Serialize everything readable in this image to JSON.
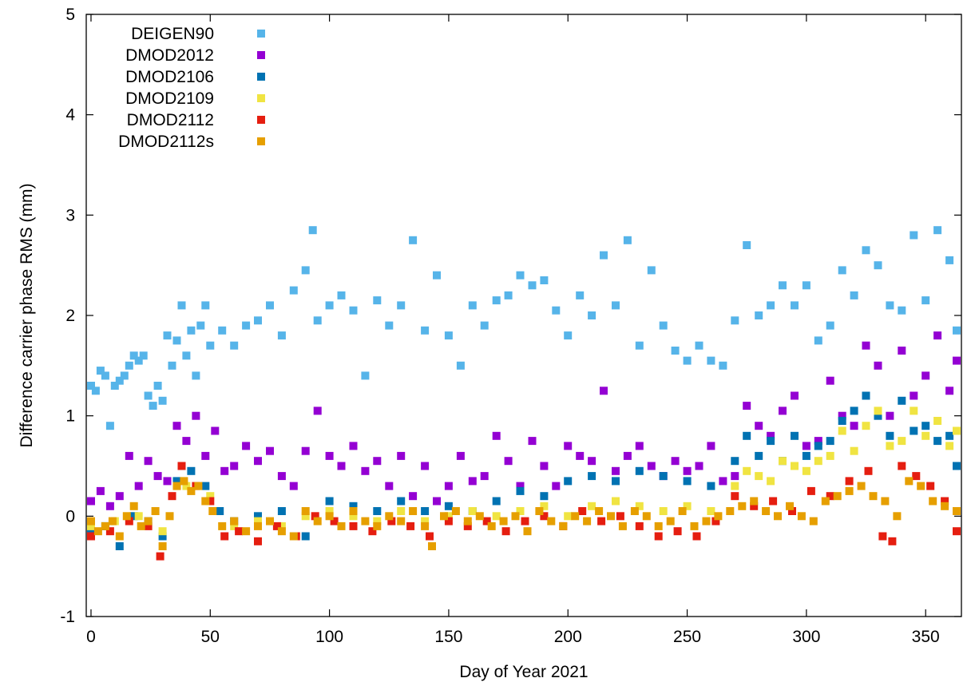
{
  "chart_data": {
    "type": "scatter",
    "title": "",
    "xlabel": "Day of Year 2021",
    "ylabel": "Difference carrier phase RMS (mm)",
    "xlim": [
      -2,
      365
    ],
    "ylim": [
      -1,
      5
    ],
    "xticks": [
      0,
      50,
      100,
      150,
      200,
      250,
      300,
      350
    ],
    "yticks": [
      -1,
      0,
      1,
      2,
      3,
      4,
      5
    ],
    "grid": false,
    "legend_position": "top-left",
    "series": [
      {
        "name": "DEIGEN90",
        "color": "#56b4e9",
        "x": [
          0,
          2,
          4,
          6,
          8,
          10,
          12,
          14,
          16,
          18,
          20,
          22,
          24,
          26,
          28,
          30,
          32,
          34,
          36,
          38,
          40,
          42,
          44,
          46,
          48,
          50,
          55,
          60,
          65,
          70,
          75,
          80,
          85,
          90,
          93,
          95,
          100,
          105,
          110,
          115,
          120,
          125,
          130,
          135,
          140,
          145,
          150,
          155,
          160,
          165,
          170,
          175,
          180,
          185,
          190,
          195,
          200,
          205,
          210,
          215,
          220,
          225,
          230,
          235,
          240,
          245,
          250,
          255,
          260,
          265,
          270,
          275,
          280,
          285,
          290,
          295,
          300,
          305,
          310,
          315,
          320,
          325,
          330,
          335,
          340,
          345,
          350,
          355,
          360,
          363
        ],
        "y": [
          1.3,
          1.25,
          1.45,
          1.4,
          0.9,
          1.3,
          1.35,
          1.4,
          1.5,
          1.6,
          1.55,
          1.6,
          1.2,
          1.1,
          1.3,
          1.15,
          1.8,
          1.5,
          1.75,
          2.1,
          1.6,
          1.85,
          1.4,
          1.9,
          2.1,
          1.7,
          1.85,
          1.7,
          1.9,
          1.95,
          2.1,
          1.8,
          2.25,
          2.45,
          2.85,
          1.95,
          2.1,
          2.2,
          2.05,
          1.4,
          2.15,
          1.9,
          2.1,
          2.75,
          1.85,
          2.4,
          1.8,
          1.5,
          2.1,
          1.9,
          2.15,
          2.2,
          2.4,
          2.3,
          2.35,
          2.05,
          1.8,
          2.2,
          2.0,
          2.6,
          2.1,
          2.75,
          1.7,
          2.45,
          1.9,
          1.65,
          1.55,
          1.7,
          1.55,
          1.5,
          1.95,
          2.7,
          2.0,
          2.1,
          2.3,
          2.1,
          2.3,
          1.75,
          1.9,
          2.45,
          2.2,
          2.65,
          2.5,
          2.1,
          2.05,
          2.8,
          2.15,
          2.85,
          2.55,
          1.85
        ]
      },
      {
        "name": "DMOD2012",
        "color": "#9400d3",
        "x": [
          0,
          4,
          8,
          12,
          16,
          20,
          24,
          28,
          32,
          36,
          40,
          44,
          48,
          52,
          56,
          60,
          65,
          70,
          75,
          80,
          85,
          90,
          95,
          100,
          105,
          110,
          115,
          120,
          125,
          130,
          135,
          140,
          145,
          150,
          155,
          160,
          165,
          170,
          175,
          180,
          185,
          190,
          195,
          200,
          205,
          210,
          215,
          220,
          225,
          230,
          235,
          240,
          245,
          250,
          255,
          260,
          265,
          270,
          275,
          280,
          285,
          290,
          295,
          300,
          305,
          310,
          315,
          320,
          325,
          330,
          335,
          340,
          345,
          350,
          355,
          360,
          363
        ],
        "y": [
          0.15,
          0.25,
          0.1,
          0.2,
          0.6,
          0.3,
          0.55,
          0.4,
          0.35,
          0.9,
          0.75,
          1.0,
          0.6,
          0.85,
          0.45,
          0.5,
          0.7,
          0.55,
          0.65,
          0.4,
          0.3,
          0.65,
          1.05,
          0.6,
          0.5,
          0.7,
          0.45,
          0.55,
          0.3,
          0.6,
          0.2,
          0.5,
          0.15,
          0.3,
          0.6,
          0.35,
          0.4,
          0.8,
          0.55,
          0.3,
          0.75,
          0.5,
          0.3,
          0.7,
          0.6,
          0.55,
          1.25,
          0.45,
          0.6,
          0.7,
          0.5,
          0.4,
          0.55,
          0.45,
          0.5,
          0.7,
          0.35,
          0.4,
          1.1,
          0.9,
          0.8,
          1.05,
          1.2,
          0.7,
          0.75,
          1.35,
          1.0,
          0.9,
          1.7,
          1.5,
          1.0,
          1.65,
          1.2,
          1.4,
          1.8,
          1.25,
          1.55
        ]
      },
      {
        "name": "DMOD2106",
        "color": "#0072b2",
        "x": [
          0,
          6,
          12,
          18,
          24,
          30,
          36,
          42,
          48,
          54,
          60,
          70,
          80,
          90,
          100,
          110,
          120,
          130,
          140,
          150,
          160,
          170,
          180,
          190,
          200,
          210,
          220,
          230,
          240,
          250,
          260,
          270,
          275,
          280,
          285,
          290,
          295,
          300,
          305,
          310,
          315,
          320,
          325,
          330,
          335,
          340,
          345,
          350,
          355,
          360,
          363
        ],
        "y": [
          -0.15,
          -0.1,
          -0.3,
          0.0,
          -0.05,
          -0.2,
          0.35,
          0.45,
          0.3,
          0.05,
          -0.05,
          0.0,
          0.05,
          -0.2,
          0.15,
          0.1,
          0.05,
          0.15,
          0.05,
          0.1,
          0.05,
          0.15,
          0.25,
          0.2,
          0.35,
          0.4,
          0.35,
          0.45,
          0.4,
          0.35,
          0.3,
          0.55,
          0.8,
          0.6,
          0.75,
          0.55,
          0.8,
          0.6,
          0.7,
          0.75,
          0.95,
          1.05,
          1.2,
          1.0,
          0.8,
          1.15,
          0.85,
          0.9,
          0.75,
          0.8,
          0.5
        ]
      },
      {
        "name": "DMOD2109",
        "color": "#f0e442",
        "x": [
          0,
          10,
          20,
          30,
          40,
          50,
          60,
          70,
          80,
          90,
          100,
          110,
          120,
          130,
          140,
          150,
          160,
          170,
          180,
          190,
          200,
          210,
          220,
          230,
          240,
          250,
          260,
          270,
          275,
          280,
          285,
          290,
          295,
          300,
          305,
          310,
          315,
          320,
          325,
          330,
          335,
          340,
          345,
          350,
          355,
          360,
          363
        ],
        "y": [
          -0.1,
          -0.05,
          0.0,
          -0.15,
          0.3,
          0.2,
          -0.1,
          -0.05,
          -0.1,
          0.0,
          0.05,
          0.0,
          -0.05,
          0.05,
          -0.05,
          0.0,
          0.05,
          0.0,
          0.05,
          0.1,
          0.0,
          0.1,
          0.15,
          0.1,
          0.05,
          0.1,
          0.05,
          0.3,
          0.45,
          0.4,
          0.35,
          0.55,
          0.5,
          0.45,
          0.55,
          0.6,
          0.85,
          0.65,
          0.9,
          1.05,
          0.7,
          0.75,
          1.05,
          0.8,
          0.95,
          0.7,
          0.85
        ]
      },
      {
        "name": "DMOD2112",
        "color": "#e51e10",
        "x": [
          0,
          8,
          16,
          24,
          29,
          34,
          38,
          44,
          50,
          56,
          62,
          70,
          78,
          86,
          94,
          102,
          110,
          118,
          126,
          134,
          142,
          150,
          158,
          166,
          174,
          182,
          190,
          198,
          206,
          214,
          222,
          230,
          238,
          246,
          254,
          262,
          270,
          278,
          286,
          294,
          302,
          310,
          318,
          326,
          332,
          336,
          340,
          346,
          352,
          358,
          363
        ],
        "y": [
          -0.2,
          -0.15,
          -0.05,
          -0.1,
          -0.4,
          0.2,
          0.5,
          0.3,
          0.15,
          -0.2,
          -0.15,
          -0.25,
          -0.1,
          -0.2,
          0.0,
          -0.05,
          -0.1,
          -0.15,
          -0.05,
          -0.1,
          -0.2,
          -0.05,
          -0.1,
          -0.05,
          -0.15,
          -0.05,
          0.0,
          -0.1,
          0.05,
          -0.05,
          0.0,
          -0.1,
          -0.2,
          -0.15,
          -0.2,
          -0.05,
          0.2,
          0.1,
          0.15,
          0.05,
          0.25,
          0.2,
          0.35,
          0.45,
          -0.2,
          -0.25,
          0.5,
          0.4,
          0.3,
          0.15,
          -0.15
        ]
      },
      {
        "name": "DMOD2112s",
        "color": "#e69f00",
        "x": [
          0,
          3,
          6,
          9,
          12,
          15,
          18,
          21,
          24,
          27,
          30,
          33,
          36,
          39,
          42,
          45,
          48,
          51,
          55,
          60,
          65,
          70,
          75,
          80,
          85,
          90,
          95,
          100,
          105,
          110,
          115,
          120,
          125,
          130,
          135,
          140,
          143,
          148,
          153,
          158,
          163,
          168,
          173,
          178,
          183,
          188,
          193,
          198,
          203,
          208,
          213,
          218,
          223,
          228,
          233,
          238,
          243,
          248,
          253,
          258,
          263,
          268,
          273,
          278,
          283,
          288,
          293,
          298,
          303,
          308,
          313,
          318,
          323,
          328,
          333,
          338,
          343,
          348,
          353,
          358,
          363
        ],
        "y": [
          -0.05,
          -0.15,
          -0.1,
          -0.05,
          -0.2,
          0.0,
          0.1,
          -0.1,
          -0.05,
          0.05,
          -0.3,
          0.0,
          0.3,
          0.35,
          0.25,
          0.3,
          0.15,
          0.05,
          -0.1,
          -0.05,
          -0.15,
          -0.1,
          -0.05,
          -0.15,
          -0.2,
          0.05,
          -0.05,
          0.0,
          -0.1,
          0.05,
          -0.05,
          -0.1,
          0.0,
          -0.05,
          0.05,
          -0.1,
          -0.3,
          0.0,
          0.05,
          -0.05,
          0.0,
          -0.1,
          -0.05,
          0.0,
          -0.15,
          0.05,
          -0.05,
          -0.1,
          0.0,
          -0.05,
          0.05,
          0.0,
          -0.1,
          0.05,
          0.0,
          -0.1,
          -0.05,
          0.05,
          -0.1,
          -0.05,
          0.0,
          0.05,
          0.1,
          0.15,
          0.05,
          0.0,
          0.1,
          0.0,
          -0.05,
          0.15,
          0.2,
          0.25,
          0.3,
          0.2,
          0.15,
          0.0,
          0.35,
          0.3,
          0.15,
          0.1,
          0.05
        ]
      }
    ]
  }
}
